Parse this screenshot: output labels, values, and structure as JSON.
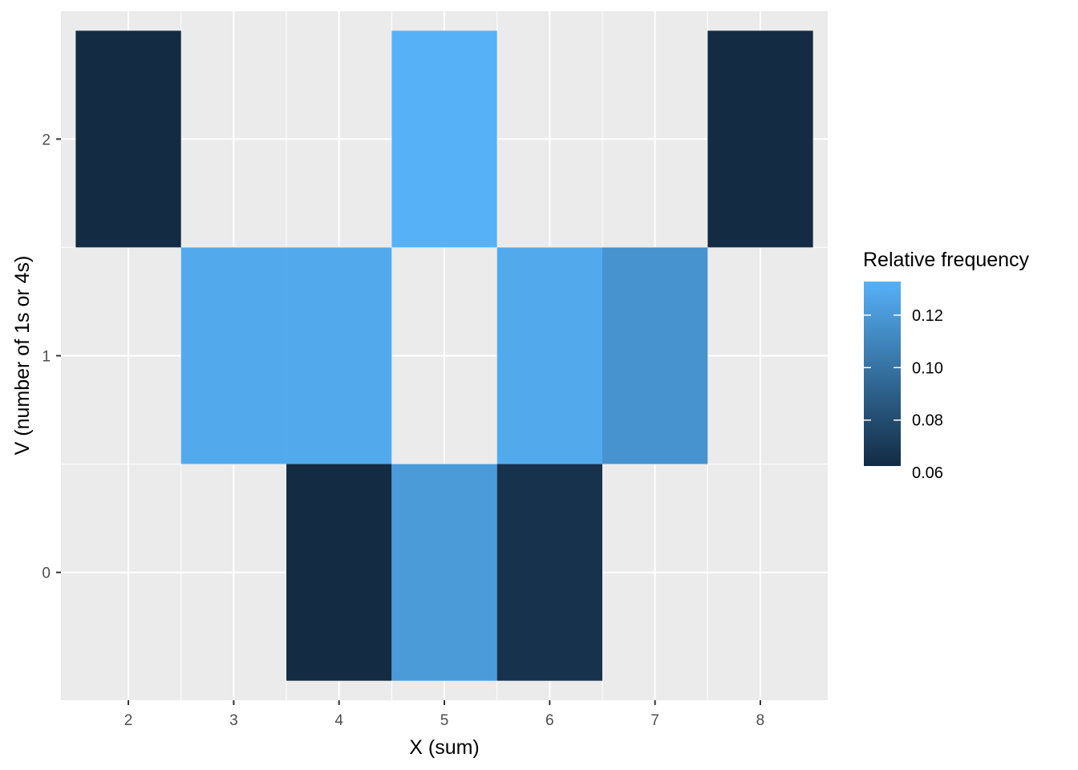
{
  "chart_data": {
    "type": "heatmap",
    "xlabel": "X (sum)",
    "ylabel": "V (number of 1s or 4s)",
    "x_ticks": [
      2,
      3,
      4,
      5,
      6,
      7,
      8
    ],
    "y_ticks": [
      0,
      1,
      2
    ],
    "xlim": [
      1.5,
      8.5
    ],
    "ylim": [
      -0.5,
      2.5
    ],
    "cells": [
      {
        "x": 2,
        "y": 2,
        "value": 0.0625
      },
      {
        "x": 5,
        "y": 2,
        "value": 0.1328
      },
      {
        "x": 8,
        "y": 2,
        "value": 0.0625
      },
      {
        "x": 3,
        "y": 1,
        "value": 0.1289
      },
      {
        "x": 4,
        "y": 1,
        "value": 0.1289
      },
      {
        "x": 6,
        "y": 1,
        "value": 0.1289
      },
      {
        "x": 7,
        "y": 1,
        "value": 0.1172
      },
      {
        "x": 4,
        "y": 0,
        "value": 0.0625
      },
      {
        "x": 5,
        "y": 0,
        "value": 0.1211
      },
      {
        "x": 6,
        "y": 0,
        "value": 0.0664
      }
    ],
    "legend": {
      "title": "Relative frequency",
      "placement": "right",
      "breaks": [
        0.06,
        0.08,
        0.1,
        0.12
      ],
      "break_labels": [
        "0.06",
        "0.08",
        "0.10",
        "0.12"
      ],
      "low": 0.0625,
      "high": 0.1328,
      "low_color": "#132B43",
      "high_color": "#56B1F7"
    },
    "panel_background": "#EBEBEB",
    "grid_color": "#FFFFFF",
    "grid": true
  }
}
